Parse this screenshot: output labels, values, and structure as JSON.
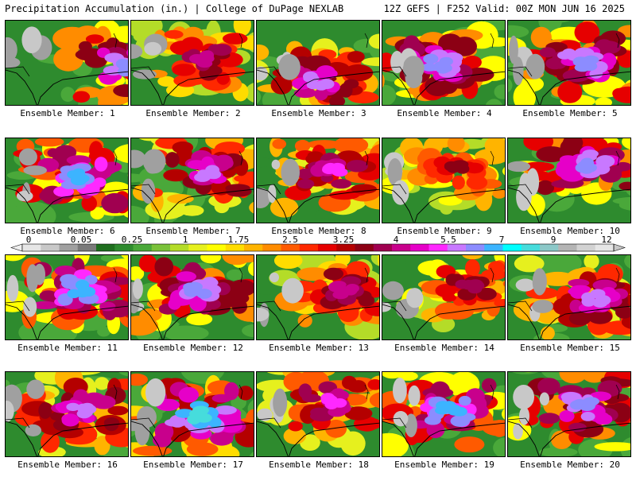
{
  "header": {
    "left": "Precipitation Accumulation (in.) | College of DuPage NEXLAB",
    "right": "12Z GEFS | F252 Valid: 00Z MON JUN 16 2025"
  },
  "member_prefix": "Ensemble Member:",
  "members": [
    {
      "label": "Ensemble Member: 1",
      "seed": 11,
      "intensity": 0.85,
      "hot": [
        1,
        0.55
      ]
    },
    {
      "label": "Ensemble Member: 2",
      "seed": 23,
      "intensity": 0.7,
      "hot": [
        0.6,
        0.45
      ]
    },
    {
      "label": "Ensemble Member: 3",
      "seed": 37,
      "intensity": 0.8,
      "hot": [
        0.5,
        0.7
      ]
    },
    {
      "label": "Ensemble Member: 4",
      "seed": 41,
      "intensity": 0.85,
      "hot": [
        0.45,
        0.5
      ]
    },
    {
      "label": "Ensemble Member: 5",
      "seed": 53,
      "intensity": 0.85,
      "hot": [
        0.6,
        0.5
      ]
    },
    {
      "label": "Ensemble Member: 6",
      "seed": 67,
      "intensity": 0.9,
      "hot": [
        0.6,
        0.45
      ]
    },
    {
      "label": "Ensemble Member: 7",
      "seed": 71,
      "intensity": 0.8,
      "hot": [
        0.6,
        0.4
      ]
    },
    {
      "label": "Ensemble Member: 8",
      "seed": 89,
      "intensity": 0.75,
      "hot": [
        0.6,
        0.4
      ]
    },
    {
      "label": "Ensemble Member: 9",
      "seed": 97,
      "intensity": 0.6,
      "hot": [
        0.6,
        0.35
      ]
    },
    {
      "label": "Ensemble Member: 10",
      "seed": 103,
      "intensity": 0.85,
      "hot": [
        0.65,
        0.3
      ]
    },
    {
      "label": "Ensemble Member: 11",
      "seed": 113,
      "intensity": 0.9,
      "hot": [
        0.6,
        0.4
      ]
    },
    {
      "label": "Ensemble Member: 12",
      "seed": 127,
      "intensity": 0.85,
      "hot": [
        0.55,
        0.4
      ]
    },
    {
      "label": "Ensemble Member: 13",
      "seed": 131,
      "intensity": 0.7,
      "hot": [
        0.7,
        0.4
      ]
    },
    {
      "label": "Ensemble Member: 14",
      "seed": 149,
      "intensity": 0.65,
      "hot": [
        0.7,
        0.35
      ]
    },
    {
      "label": "Ensemble Member: 15",
      "seed": 151,
      "intensity": 0.8,
      "hot": [
        0.7,
        0.5
      ]
    },
    {
      "label": "Ensemble Member: 16",
      "seed": 163,
      "intensity": 0.8,
      "hot": [
        0.6,
        0.45
      ]
    },
    {
      "label": "Ensemble Member: 17",
      "seed": 173,
      "intensity": 0.95,
      "hot": [
        0.55,
        0.5
      ]
    },
    {
      "label": "Ensemble Member: 18",
      "seed": 181,
      "intensity": 0.75,
      "hot": [
        0.6,
        0.35
      ]
    },
    {
      "label": "Ensemble Member: 19",
      "seed": 191,
      "intensity": 0.9,
      "hot": [
        0.55,
        0.45
      ]
    },
    {
      "label": "Ensemble Member: 20",
      "seed": 199,
      "intensity": 0.85,
      "hot": [
        0.6,
        0.4
      ]
    }
  ],
  "colorbar": {
    "tick_labels": [
      "0",
      "0.05",
      "0.25",
      "1",
      "1.75",
      "2.5",
      "3.25",
      "4",
      "5.5",
      "7",
      "9",
      "12"
    ],
    "colors": [
      "#e6e6e6",
      "#c8c8c8",
      "#a0a0a0",
      "#7a7a7a",
      "#1e6e1e",
      "#2e8b2e",
      "#4aa83a",
      "#7ac23a",
      "#b4dc28",
      "#e6f01e",
      "#ffff00",
      "#ffdc00",
      "#ffb400",
      "#ff8c00",
      "#ff5a00",
      "#ff2800",
      "#e60000",
      "#b40000",
      "#8c0014",
      "#a00050",
      "#c8008c",
      "#e600c8",
      "#ff28ff",
      "#c878ff",
      "#8c8cff",
      "#3cb4ff",
      "#00ffff",
      "#46dcdc",
      "#8cc8c8",
      "#b4b4b4",
      "#d2d2d2",
      "#e6e6e6"
    ]
  }
}
